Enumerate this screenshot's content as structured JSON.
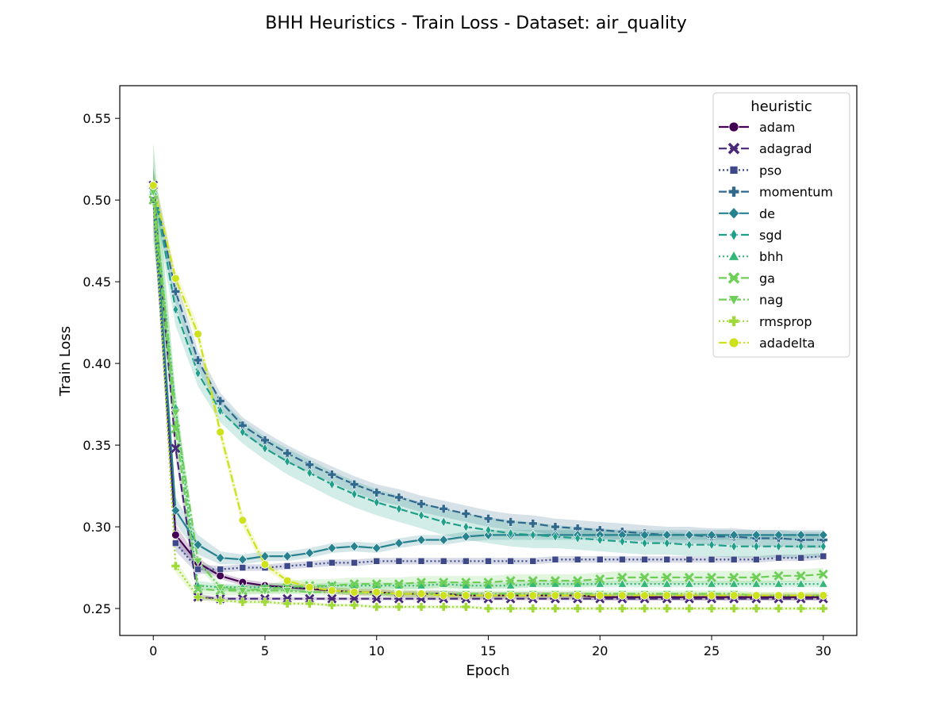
{
  "chart_data": {
    "type": "line",
    "title": "BHH Heuristics - Train Loss - Dataset: air_quality",
    "xlabel": "Epoch",
    "ylabel": "Train Loss",
    "xlim": [
      -1.5,
      31.5
    ],
    "ylim": [
      0.2335,
      0.57
    ],
    "xticks": [
      0,
      5,
      10,
      15,
      20,
      25,
      30
    ],
    "yticks": [
      0.25,
      0.3,
      0.35,
      0.4,
      0.45,
      0.5,
      0.55
    ],
    "ytick_labels": [
      "0.25",
      "0.30",
      "0.35",
      "0.40",
      "0.45",
      "0.50",
      "0.55"
    ],
    "legend_title": "heuristic",
    "legend_position": "top-right",
    "grid": false,
    "x": [
      0,
      1,
      2,
      3,
      4,
      5,
      6,
      7,
      8,
      9,
      10,
      11,
      12,
      13,
      14,
      15,
      16,
      17,
      18,
      19,
      20,
      21,
      22,
      23,
      24,
      25,
      26,
      27,
      28,
      29,
      30
    ],
    "series": [
      {
        "name": "adam",
        "color": "#440154",
        "dash": "solid",
        "marker": "circle",
        "values": [
          0.509,
          0.295,
          0.278,
          0.27,
          0.266,
          0.264,
          0.263,
          0.262,
          0.261,
          0.26,
          0.26,
          0.259,
          0.259,
          0.259,
          0.258,
          0.258,
          0.258,
          0.258,
          0.258,
          0.258,
          0.257,
          0.257,
          0.257,
          0.257,
          0.257,
          0.257,
          0.257,
          0.257,
          0.257,
          0.257,
          0.257
        ],
        "band": [
          0.01,
          0.006,
          0.003,
          0.002,
          0.002,
          0.002,
          0.002,
          0.002,
          0.002,
          0.002,
          0.002,
          0.002,
          0.002,
          0.002,
          0.002,
          0.002,
          0.002,
          0.002,
          0.002,
          0.002,
          0.002,
          0.002,
          0.002,
          0.002,
          0.002,
          0.002,
          0.002,
          0.002,
          0.002,
          0.002,
          0.002
        ]
      },
      {
        "name": "adagrad",
        "color": "#482878",
        "dash": "dashed",
        "marker": "x",
        "values": [
          0.509,
          0.348,
          0.257,
          0.256,
          0.256,
          0.256,
          0.256,
          0.256,
          0.256,
          0.256,
          0.256,
          0.256,
          0.256,
          0.256,
          0.256,
          0.256,
          0.256,
          0.256,
          0.256,
          0.256,
          0.256,
          0.256,
          0.256,
          0.256,
          0.256,
          0.256,
          0.256,
          0.256,
          0.256,
          0.256,
          0.256
        ],
        "band": [
          0.01,
          0.006,
          0.002,
          0.001,
          0.001,
          0.001,
          0.001,
          0.001,
          0.001,
          0.001,
          0.001,
          0.001,
          0.001,
          0.001,
          0.001,
          0.001,
          0.001,
          0.001,
          0.001,
          0.001,
          0.001,
          0.001,
          0.001,
          0.001,
          0.001,
          0.001,
          0.001,
          0.001,
          0.001,
          0.001,
          0.001
        ]
      },
      {
        "name": "pso",
        "color": "#3e4989",
        "dash": "dotted",
        "marker": "square",
        "values": [
          0.5,
          0.29,
          0.274,
          0.274,
          0.275,
          0.275,
          0.276,
          0.277,
          0.278,
          0.278,
          0.279,
          0.279,
          0.279,
          0.279,
          0.279,
          0.279,
          0.279,
          0.279,
          0.28,
          0.28,
          0.28,
          0.28,
          0.28,
          0.28,
          0.28,
          0.28,
          0.28,
          0.28,
          0.281,
          0.281,
          0.282
        ],
        "band": [
          0.015,
          0.005,
          0.003,
          0.002,
          0.002,
          0.002,
          0.002,
          0.002,
          0.002,
          0.002,
          0.002,
          0.002,
          0.002,
          0.002,
          0.002,
          0.002,
          0.002,
          0.002,
          0.002,
          0.002,
          0.002,
          0.002,
          0.002,
          0.002,
          0.002,
          0.002,
          0.002,
          0.002,
          0.002,
          0.002,
          0.002
        ]
      },
      {
        "name": "momentum",
        "color": "#31688e",
        "dash": "dashed",
        "marker": "plus",
        "values": [
          0.509,
          0.444,
          0.402,
          0.377,
          0.362,
          0.353,
          0.345,
          0.338,
          0.332,
          0.326,
          0.321,
          0.318,
          0.314,
          0.311,
          0.308,
          0.305,
          0.303,
          0.302,
          0.3,
          0.299,
          0.298,
          0.297,
          0.296,
          0.295,
          0.295,
          0.294,
          0.294,
          0.293,
          0.293,
          0.292,
          0.292
        ],
        "band": [
          0.01,
          0.008,
          0.006,
          0.005,
          0.005,
          0.005,
          0.005,
          0.005,
          0.005,
          0.005,
          0.005,
          0.005,
          0.005,
          0.005,
          0.005,
          0.005,
          0.005,
          0.005,
          0.005,
          0.005,
          0.005,
          0.005,
          0.005,
          0.005,
          0.005,
          0.005,
          0.005,
          0.005,
          0.005,
          0.005,
          0.005
        ]
      },
      {
        "name": "de",
        "color": "#26828e",
        "dash": "solid",
        "marker": "diamond",
        "values": [
          0.505,
          0.31,
          0.289,
          0.281,
          0.28,
          0.282,
          0.282,
          0.284,
          0.287,
          0.288,
          0.287,
          0.29,
          0.292,
          0.292,
          0.294,
          0.295,
          0.295,
          0.295,
          0.295,
          0.295,
          0.295,
          0.295,
          0.295,
          0.295,
          0.295,
          0.295,
          0.295,
          0.295,
          0.295,
          0.295,
          0.295
        ],
        "band": [
          0.02,
          0.008,
          0.006,
          0.004,
          0.003,
          0.003,
          0.003,
          0.003,
          0.003,
          0.003,
          0.003,
          0.003,
          0.003,
          0.003,
          0.003,
          0.003,
          0.003,
          0.003,
          0.003,
          0.003,
          0.003,
          0.003,
          0.003,
          0.003,
          0.003,
          0.003,
          0.003,
          0.003,
          0.003,
          0.003,
          0.003
        ]
      },
      {
        "name": "sgd",
        "color": "#1f9e89",
        "dash": "dashed",
        "marker": "thin-diamond",
        "values": [
          0.509,
          0.433,
          0.394,
          0.371,
          0.358,
          0.348,
          0.34,
          0.333,
          0.326,
          0.32,
          0.315,
          0.311,
          0.307,
          0.303,
          0.3,
          0.298,
          0.296,
          0.295,
          0.294,
          0.293,
          0.292,
          0.291,
          0.29,
          0.29,
          0.289,
          0.289,
          0.288,
          0.288,
          0.288,
          0.288,
          0.288
        ],
        "band": [
          0.01,
          0.01,
          0.008,
          0.007,
          0.007,
          0.007,
          0.008,
          0.008,
          0.008,
          0.008,
          0.008,
          0.008,
          0.008,
          0.008,
          0.008,
          0.008,
          0.008,
          0.008,
          0.007,
          0.007,
          0.007,
          0.007,
          0.007,
          0.007,
          0.007,
          0.007,
          0.007,
          0.007,
          0.007,
          0.007,
          0.007
        ]
      },
      {
        "name": "bhh",
        "color": "#35b779",
        "dash": "dotted",
        "marker": "triangle-up",
        "values": [
          0.505,
          0.373,
          0.264,
          0.263,
          0.263,
          0.263,
          0.263,
          0.263,
          0.264,
          0.264,
          0.264,
          0.264,
          0.264,
          0.265,
          0.264,
          0.264,
          0.264,
          0.265,
          0.265,
          0.265,
          0.265,
          0.265,
          0.265,
          0.265,
          0.265,
          0.265,
          0.265,
          0.265,
          0.265,
          0.265,
          0.265
        ],
        "band": [
          0.03,
          0.01,
          0.003,
          0.002,
          0.002,
          0.002,
          0.002,
          0.002,
          0.002,
          0.002,
          0.002,
          0.002,
          0.002,
          0.002,
          0.002,
          0.002,
          0.002,
          0.002,
          0.002,
          0.002,
          0.002,
          0.002,
          0.002,
          0.002,
          0.002,
          0.002,
          0.002,
          0.002,
          0.002,
          0.002,
          0.002
        ]
      },
      {
        "name": "ga",
        "color": "#6ece58",
        "dash": "dashed",
        "marker": "x",
        "values": [
          0.5,
          0.36,
          0.262,
          0.261,
          0.261,
          0.262,
          0.263,
          0.264,
          0.264,
          0.265,
          0.265,
          0.265,
          0.266,
          0.266,
          0.266,
          0.266,
          0.267,
          0.267,
          0.267,
          0.267,
          0.268,
          0.269,
          0.269,
          0.269,
          0.269,
          0.269,
          0.269,
          0.269,
          0.27,
          0.27,
          0.271
        ],
        "band": [
          0.02,
          0.01,
          0.003,
          0.003,
          0.003,
          0.003,
          0.004,
          0.004,
          0.004,
          0.004,
          0.004,
          0.004,
          0.004,
          0.004,
          0.004,
          0.004,
          0.004,
          0.004,
          0.004,
          0.004,
          0.004,
          0.004,
          0.004,
          0.004,
          0.004,
          0.004,
          0.004,
          0.004,
          0.004,
          0.004,
          0.004
        ]
      },
      {
        "name": "nag",
        "color": "#6ece58",
        "dash": "dashdot",
        "marker": "triangle-down",
        "values": [
          0.505,
          0.37,
          0.279,
          0.263,
          0.261,
          0.261,
          0.261,
          0.26,
          0.26,
          0.26,
          0.259,
          0.259,
          0.259,
          0.259,
          0.259,
          0.259,
          0.259,
          0.259,
          0.259,
          0.259,
          0.259,
          0.259,
          0.259,
          0.259,
          0.259,
          0.259,
          0.259,
          0.258,
          0.258,
          0.258,
          0.258
        ],
        "band": [
          0.03,
          0.01,
          0.004,
          0.002,
          0.002,
          0.002,
          0.002,
          0.002,
          0.002,
          0.002,
          0.002,
          0.002,
          0.002,
          0.002,
          0.002,
          0.002,
          0.002,
          0.002,
          0.002,
          0.002,
          0.002,
          0.002,
          0.002,
          0.002,
          0.002,
          0.002,
          0.002,
          0.002,
          0.002,
          0.002,
          0.002
        ]
      },
      {
        "name": "rmsprop",
        "color": "#a0da39",
        "dash": "dotted",
        "marker": "plus",
        "values": [
          0.509,
          0.276,
          0.257,
          0.255,
          0.254,
          0.254,
          0.253,
          0.253,
          0.252,
          0.252,
          0.251,
          0.251,
          0.251,
          0.251,
          0.251,
          0.25,
          0.25,
          0.25,
          0.25,
          0.25,
          0.25,
          0.25,
          0.25,
          0.25,
          0.25,
          0.25,
          0.25,
          0.25,
          0.25,
          0.25,
          0.25
        ],
        "band": [
          0.01,
          0.004,
          0.002,
          0.001,
          0.001,
          0.001,
          0.001,
          0.001,
          0.001,
          0.001,
          0.001,
          0.001,
          0.001,
          0.001,
          0.001,
          0.001,
          0.001,
          0.001,
          0.001,
          0.001,
          0.001,
          0.001,
          0.001,
          0.001,
          0.001,
          0.001,
          0.001,
          0.001,
          0.001,
          0.001,
          0.001
        ]
      },
      {
        "name": "adadelta",
        "color": "#cde11d",
        "dash": "dashdot",
        "marker": "circle",
        "values": [
          0.509,
          0.452,
          0.418,
          0.358,
          0.304,
          0.277,
          0.267,
          0.263,
          0.261,
          0.26,
          0.26,
          0.259,
          0.259,
          0.258,
          0.258,
          0.258,
          0.258,
          0.258,
          0.258,
          0.258,
          0.258,
          0.258,
          0.258,
          0.258,
          0.258,
          0.258,
          0.258,
          0.258,
          0.258,
          0.258,
          0.258
        ],
        "band": [
          0.008,
          0.005,
          0.005,
          0.005,
          0.004,
          0.003,
          0.002,
          0.002,
          0.002,
          0.002,
          0.002,
          0.002,
          0.002,
          0.002,
          0.002,
          0.002,
          0.002,
          0.002,
          0.002,
          0.002,
          0.002,
          0.002,
          0.002,
          0.002,
          0.002,
          0.002,
          0.002,
          0.002,
          0.002,
          0.002,
          0.002
        ]
      }
    ]
  }
}
